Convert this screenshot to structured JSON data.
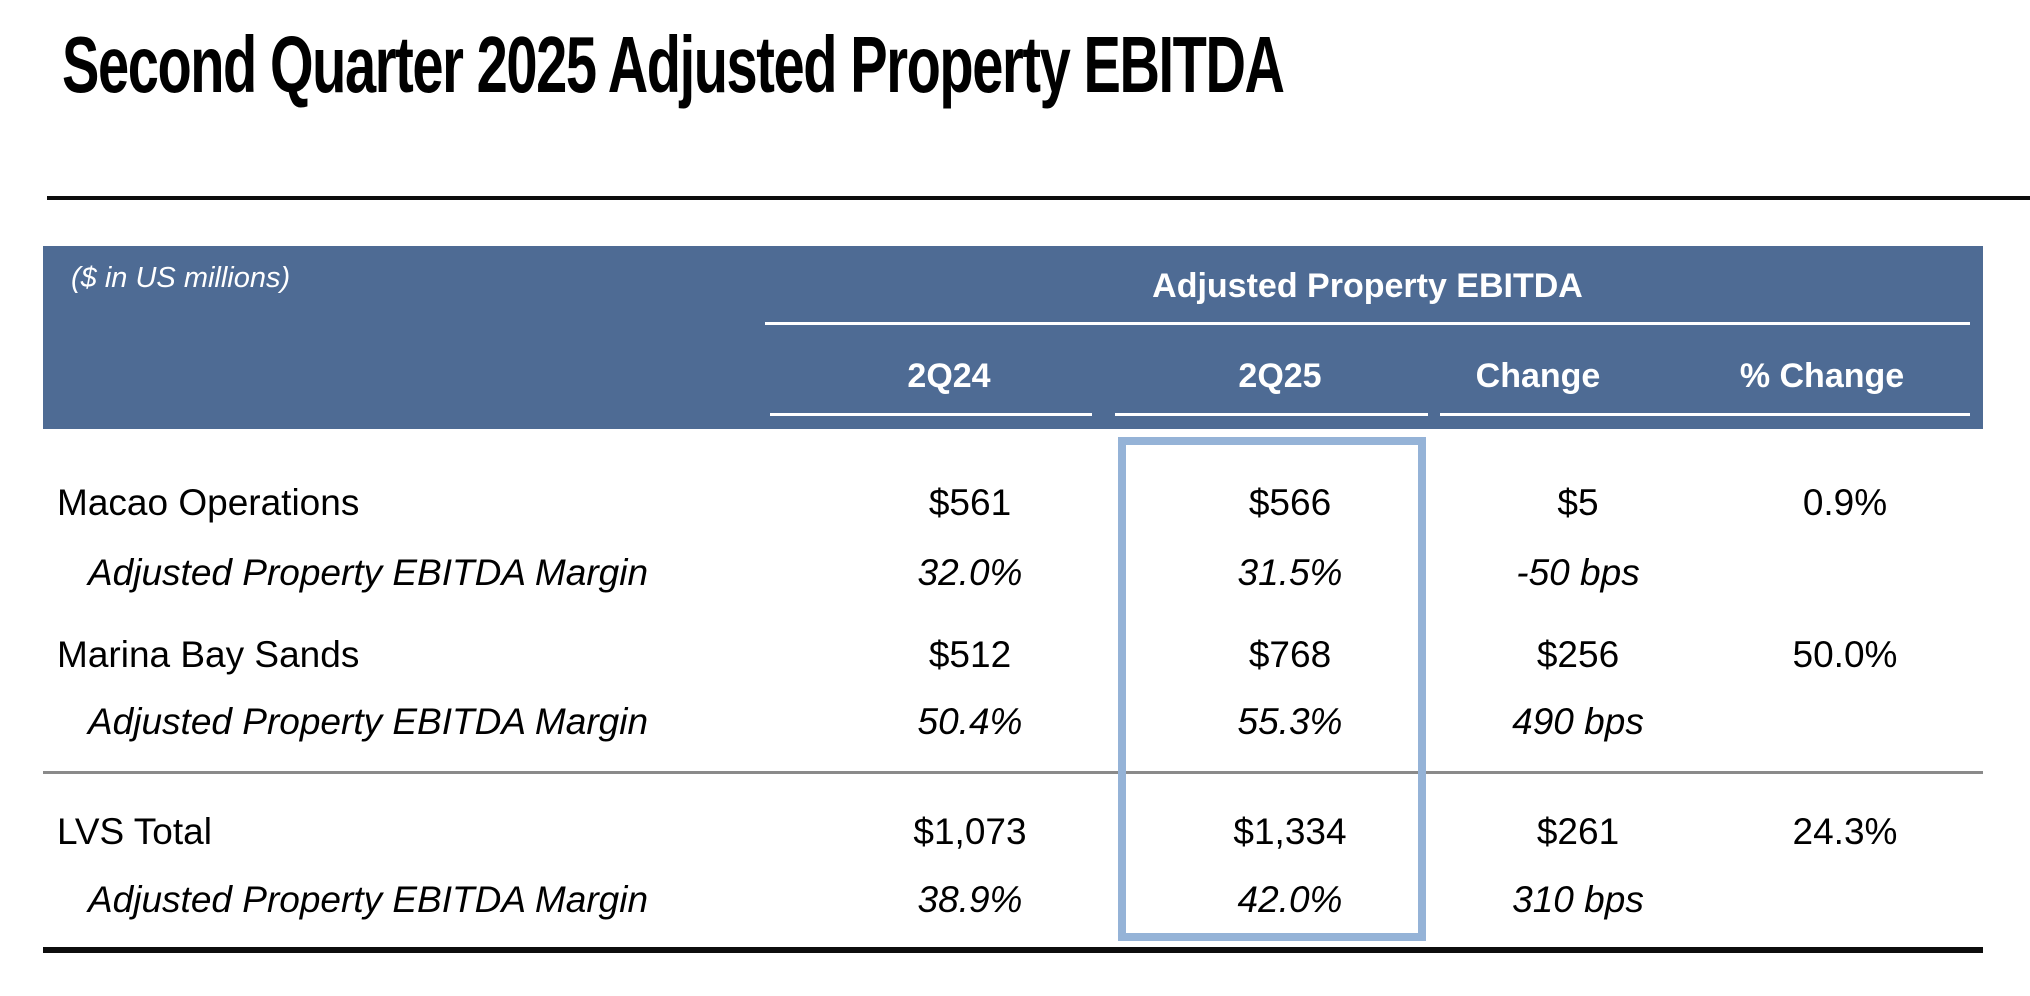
{
  "slide": {
    "title": "Second Quarter 2025 Adjusted Property EBITDA"
  },
  "table": {
    "units_note": "($ in US millions)",
    "group_header": "Adjusted Property EBITDA",
    "columns": [
      "2Q24",
      "2Q25",
      "Change",
      "% Change"
    ],
    "highlighted_column": "2Q25",
    "rows": [
      {
        "label": "Macao Operations",
        "style": "main",
        "values": [
          "$561",
          "$566",
          "$5",
          "0.9%"
        ]
      },
      {
        "label": "Adjusted Property EBITDA Margin",
        "style": "margin",
        "values": [
          "32.0%",
          "31.5%",
          "-50 bps",
          ""
        ]
      },
      {
        "label": "Marina Bay Sands",
        "style": "main",
        "values": [
          "$512",
          "$768",
          "$256",
          "50.0%"
        ]
      },
      {
        "label": "Adjusted Property EBITDA Margin",
        "style": "margin",
        "values": [
          "50.4%",
          "55.3%",
          "490 bps",
          ""
        ]
      },
      {
        "label": "LVS Total",
        "style": "main",
        "values": [
          "$1,073",
          "$1,334",
          "$261",
          "24.3%"
        ]
      },
      {
        "label": "Adjusted Property EBITDA Margin",
        "style": "margin",
        "values": [
          "38.9%",
          "42.0%",
          "310 bps",
          ""
        ]
      }
    ]
  },
  "colors": {
    "header_bg": "#4e6b94",
    "highlight_border": "#95b3d7",
    "divider_gray": "#8a8a8a",
    "rule_black": "#0d0d0d"
  }
}
